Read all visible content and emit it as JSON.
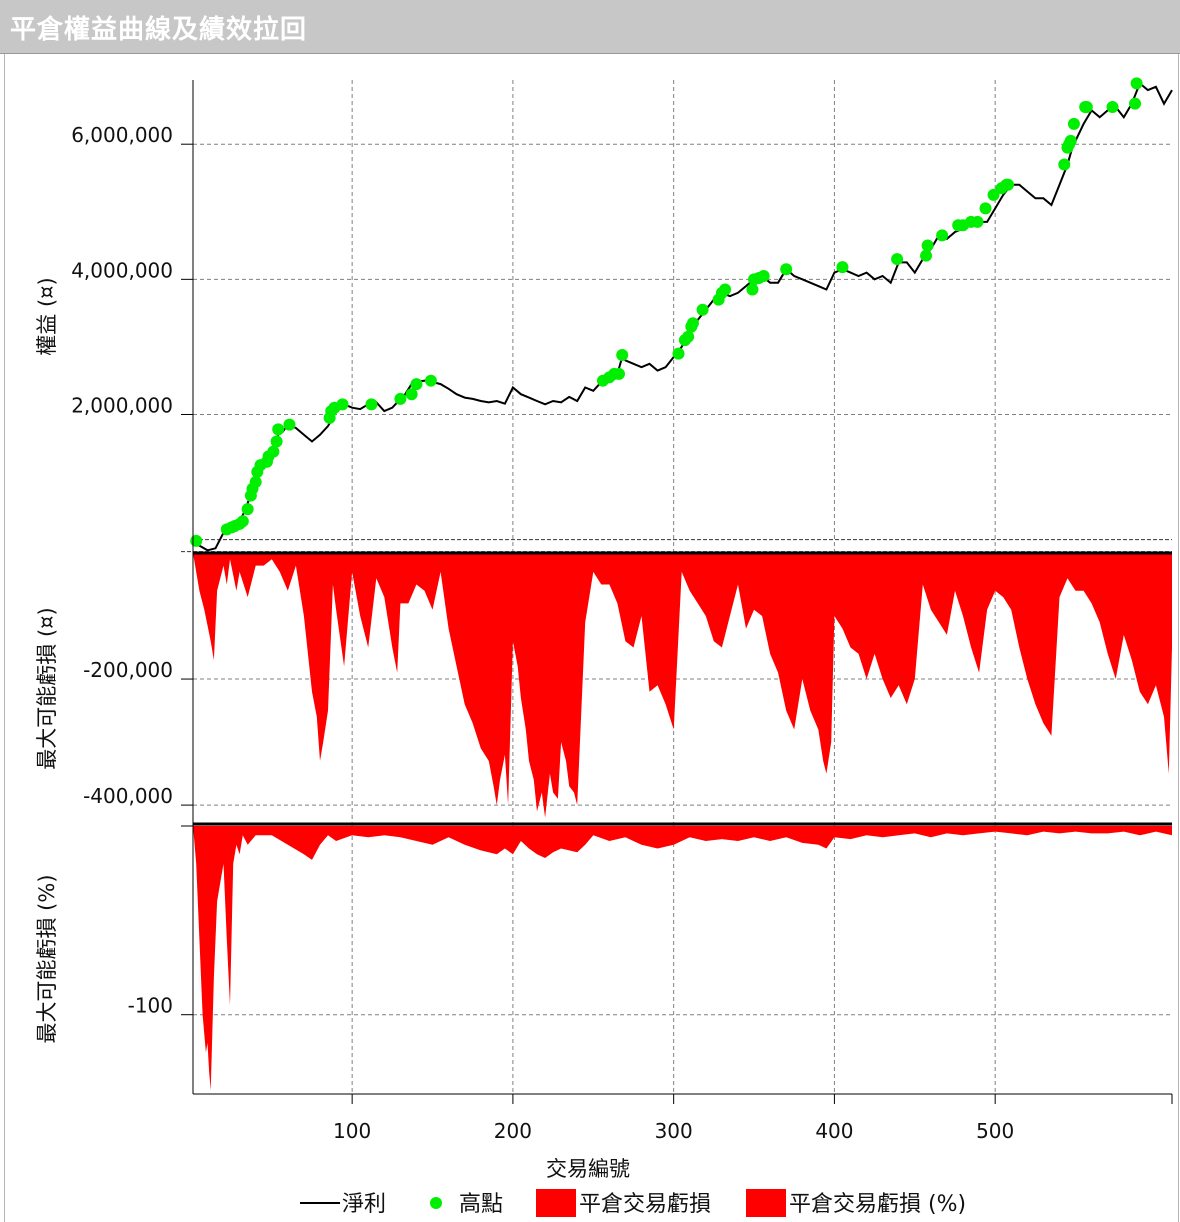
{
  "window": {
    "title": "平倉權益曲線及績效拉回"
  },
  "chart_data": [
    {
      "type": "line",
      "panel": "equity",
      "ylabel": "權益 (¤)",
      "xlabel": "交易編號",
      "xlim": [
        1,
        610
      ],
      "ylim": [
        -50000,
        6950000
      ],
      "yticks": [
        2000000,
        4000000,
        6000000
      ],
      "ytick_labels": [
        "2,000,000",
        "4,000,000",
        "6,000,000"
      ],
      "xticks": [
        100,
        200,
        300,
        400,
        500
      ],
      "grid": true,
      "series": [
        {
          "name": "淨利",
          "color": "#000000",
          "x": [
            1,
            5,
            10,
            15,
            20,
            22,
            25,
            30,
            33,
            36,
            38,
            40,
            42,
            44,
            46,
            48,
            50,
            53,
            55,
            57,
            60,
            65,
            70,
            75,
            80,
            85,
            88,
            90,
            93,
            95,
            100,
            105,
            110,
            115,
            120,
            125,
            130,
            133,
            137,
            140,
            145,
            150,
            155,
            160,
            165,
            170,
            175,
            180,
            185,
            190,
            195,
            200,
            205,
            210,
            215,
            220,
            225,
            230,
            235,
            240,
            245,
            250,
            255,
            260,
            265,
            268,
            270,
            275,
            280,
            285,
            290,
            295,
            300,
            305,
            310,
            315,
            320,
            325,
            330,
            335,
            340,
            345,
            350,
            355,
            360,
            365,
            370,
            375,
            380,
            385,
            390,
            395,
            400,
            405,
            410,
            415,
            420,
            425,
            430,
            435,
            440,
            445,
            450,
            455,
            460,
            465,
            470,
            475,
            480,
            485,
            490,
            495,
            500,
            505,
            510,
            515,
            520,
            525,
            530,
            535,
            540,
            545,
            548,
            550,
            555,
            560,
            565,
            570,
            575,
            580,
            585,
            590,
            595,
            600,
            605,
            610
          ],
          "values": [
            120000,
            60000,
            -10000,
            20000,
            250000,
            330000,
            350000,
            420000,
            560000,
            750000,
            900000,
            1000000,
            1150000,
            1200000,
            1300000,
            1380000,
            1450000,
            1620000,
            1780000,
            1750000,
            1850000,
            1800000,
            1700000,
            1600000,
            1700000,
            1830000,
            1950000,
            2050000,
            2120000,
            2150000,
            2100000,
            2080000,
            2150000,
            2180000,
            2050000,
            2100000,
            2230000,
            2300000,
            2450000,
            2480000,
            2500000,
            2480000,
            2450000,
            2380000,
            2300000,
            2250000,
            2230000,
            2200000,
            2180000,
            2200000,
            2160000,
            2400000,
            2300000,
            2250000,
            2200000,
            2150000,
            2200000,
            2180000,
            2260000,
            2200000,
            2400000,
            2350000,
            2480000,
            2550000,
            2600000,
            2850000,
            2800000,
            2750000,
            2700000,
            2750000,
            2650000,
            2700000,
            2850000,
            3000000,
            3250000,
            3400000,
            3550000,
            3700000,
            3800000,
            3750000,
            3800000,
            3900000,
            4000000,
            4050000,
            3950000,
            3950000,
            4150000,
            4050000,
            4000000,
            3950000,
            3900000,
            3850000,
            4100000,
            4150000,
            4100000,
            4050000,
            4100000,
            4000000,
            4050000,
            3950000,
            4250000,
            4250000,
            4100000,
            4300000,
            4450000,
            4650000,
            4600000,
            4700000,
            4750000,
            4800000,
            4850000,
            4850000,
            5050000,
            5250000,
            5400000,
            5400000,
            5300000,
            5200000,
            5200000,
            5100000,
            5400000,
            5700000,
            5950000,
            6050000,
            6300000,
            6500000,
            6400000,
            6500000,
            6550000,
            6400000,
            6600000,
            6900000,
            6800000,
            6850000,
            6600000,
            6800000
          ]
        },
        {
          "name": "高點",
          "color": "#00ee00",
          "x": [
            3,
            22,
            25,
            27,
            30,
            32,
            35,
            37,
            38,
            40,
            41,
            43,
            47,
            48,
            51,
            53,
            54,
            61,
            86,
            87,
            89,
            94,
            112,
            130,
            137,
            140,
            149,
            256,
            260,
            263,
            266,
            268,
            303,
            307,
            309,
            311,
            312,
            318,
            328,
            330,
            332,
            349,
            350,
            353,
            356,
            370,
            405,
            439,
            457,
            458,
            467,
            477,
            480,
            485,
            489,
            494,
            499,
            504,
            507,
            508,
            543,
            545,
            546,
            547,
            549,
            556,
            557,
            573,
            587,
            588
          ],
          "values": [
            130000,
            300000,
            330000,
            350000,
            380000,
            420000,
            600000,
            800000,
            900000,
            1000000,
            1150000,
            1250000,
            1300000,
            1380000,
            1450000,
            1600000,
            1780000,
            1850000,
            1950000,
            2050000,
            2100000,
            2150000,
            2150000,
            2230000,
            2300000,
            2450000,
            2500000,
            2500000,
            2550000,
            2600000,
            2600000,
            2880000,
            2900000,
            3100000,
            3150000,
            3300000,
            3350000,
            3550000,
            3700000,
            3800000,
            3850000,
            3850000,
            4000000,
            4020000,
            4050000,
            4150000,
            4180000,
            4300000,
            4350000,
            4500000,
            4650000,
            4800000,
            4800000,
            4850000,
            4850000,
            5050000,
            5250000,
            5350000,
            5400000,
            5400000,
            5700000,
            5950000,
            6000000,
            6050000,
            6300000,
            6550000,
            6550000,
            6550000,
            6600000,
            6900000
          ],
          "marker": "circle"
        }
      ]
    },
    {
      "type": "area",
      "panel": "drawdown",
      "ylabel": "最大可能虧損 (¤)",
      "ylim": [
        -430000,
        0
      ],
      "yticks": [
        -400000,
        -200000
      ],
      "ytick_labels": [
        "-400,000",
        "-200,000"
      ],
      "grid": true,
      "series": [
        {
          "name": "平倉交易虧損",
          "color": "#ff0000",
          "x": [
            1,
            5,
            8,
            12,
            14,
            16,
            20,
            22,
            24,
            28,
            30,
            35,
            40,
            45,
            50,
            55,
            60,
            65,
            70,
            75,
            78,
            80,
            82,
            85,
            88,
            90,
            95,
            100,
            105,
            110,
            115,
            120,
            125,
            128,
            130,
            135,
            140,
            145,
            150,
            155,
            160,
            165,
            170,
            175,
            180,
            185,
            188,
            190,
            192,
            195,
            197,
            200,
            203,
            205,
            208,
            210,
            213,
            215,
            218,
            220,
            223,
            225,
            228,
            230,
            233,
            235,
            238,
            240,
            245,
            250,
            255,
            260,
            265,
            270,
            275,
            280,
            285,
            290,
            295,
            300,
            305,
            310,
            315,
            320,
            325,
            330,
            335,
            340,
            345,
            350,
            355,
            360,
            365,
            370,
            375,
            380,
            385,
            390,
            393,
            395,
            398,
            400,
            405,
            410,
            415,
            420,
            425,
            430,
            435,
            440,
            445,
            450,
            455,
            460,
            465,
            470,
            475,
            480,
            485,
            490,
            495,
            500,
            505,
            510,
            515,
            520,
            525,
            530,
            535,
            540,
            545,
            550,
            555,
            560,
            565,
            570,
            575,
            580,
            585,
            590,
            595,
            600,
            605,
            608,
            610
          ],
          "values": [
            0,
            -60000,
            -90000,
            -140000,
            -170000,
            -60000,
            -20000,
            -50000,
            -10000,
            -60000,
            -30000,
            -70000,
            -20000,
            -20000,
            -10000,
            -30000,
            -60000,
            -20000,
            -100000,
            -220000,
            -260000,
            -330000,
            -300000,
            -250000,
            -50000,
            -90000,
            -180000,
            -30000,
            -100000,
            -150000,
            -40000,
            -70000,
            -150000,
            -190000,
            -80000,
            -80000,
            -50000,
            -60000,
            -90000,
            -30000,
            -120000,
            -180000,
            -240000,
            -270000,
            -310000,
            -330000,
            -370000,
            -400000,
            -360000,
            -320000,
            -400000,
            -140000,
            -180000,
            -230000,
            -280000,
            -330000,
            -360000,
            -410000,
            -380000,
            -420000,
            -350000,
            -380000,
            -390000,
            -300000,
            -330000,
            -370000,
            -380000,
            -400000,
            -110000,
            -30000,
            -50000,
            -50000,
            -80000,
            -140000,
            -150000,
            -100000,
            -220000,
            -210000,
            -240000,
            -280000,
            -30000,
            -60000,
            -80000,
            -100000,
            -140000,
            -150000,
            -100000,
            -50000,
            -120000,
            -90000,
            -100000,
            -160000,
            -190000,
            -250000,
            -280000,
            -200000,
            -250000,
            -280000,
            -330000,
            -350000,
            -300000,
            -100000,
            -120000,
            -150000,
            -160000,
            -200000,
            -160000,
            -200000,
            -230000,
            -210000,
            -240000,
            -200000,
            -50000,
            -90000,
            -110000,
            -130000,
            -60000,
            -100000,
            -150000,
            -190000,
            -90000,
            -60000,
            -70000,
            -90000,
            -150000,
            -200000,
            -240000,
            -270000,
            -290000,
            -70000,
            -40000,
            -60000,
            -60000,
            -80000,
            -110000,
            -160000,
            -200000,
            -130000,
            -170000,
            -220000,
            -240000,
            -210000,
            -260000,
            -350000,
            -150000
          ]
        }
      ]
    },
    {
      "type": "area",
      "panel": "drawdown_pct",
      "ylabel": "最大可能虧損 (%)",
      "ylim": [
        -142,
        1
      ],
      "yticks": [
        -100
      ],
      "ytick_labels": [
        "-100"
      ],
      "grid": true,
      "series": [
        {
          "name": "平倉交易虧損 (%)",
          "color": "#ff0000",
          "x": [
            1,
            3,
            5,
            7,
            9,
            10,
            11,
            12,
            13,
            14,
            15,
            16,
            18,
            20,
            22,
            24,
            26,
            28,
            30,
            32,
            35,
            40,
            50,
            60,
            70,
            75,
            80,
            85,
            90,
            100,
            110,
            120,
            130,
            140,
            150,
            160,
            170,
            180,
            190,
            195,
            200,
            205,
            210,
            215,
            220,
            225,
            230,
            235,
            240,
            245,
            250,
            260,
            270,
            280,
            290,
            300,
            310,
            320,
            330,
            340,
            350,
            360,
            370,
            380,
            390,
            395,
            400,
            410,
            420,
            430,
            440,
            450,
            460,
            470,
            480,
            490,
            500,
            510,
            520,
            530,
            540,
            550,
            560,
            570,
            580,
            590,
            600,
            610
          ],
          "values": [
            0,
            -20,
            -60,
            -100,
            -120,
            -115,
            -130,
            -140,
            -110,
            -80,
            -60,
            -40,
            -30,
            -20,
            -60,
            -95,
            -20,
            -10,
            -15,
            -5,
            -10,
            -5,
            -5,
            -10,
            -15,
            -18,
            -10,
            -5,
            -8,
            -5,
            -6,
            -5,
            -6,
            -8,
            -10,
            -6,
            -10,
            -13,
            -15,
            -12,
            -15,
            -8,
            -12,
            -15,
            -17,
            -14,
            -12,
            -13,
            -14,
            -10,
            -5,
            -8,
            -6,
            -10,
            -12,
            -10,
            -6,
            -8,
            -7,
            -8,
            -6,
            -8,
            -6,
            -9,
            -10,
            -12,
            -6,
            -7,
            -5,
            -6,
            -5,
            -4,
            -6,
            -4,
            -5,
            -4,
            -3,
            -4,
            -5,
            -3,
            -4,
            -3,
            -4,
            -4,
            -3,
            -5,
            -3,
            -5
          ]
        }
      ]
    }
  ],
  "legend": {
    "items": [
      {
        "label": "淨利",
        "kind": "line",
        "color": "#000000"
      },
      {
        "label": "高點",
        "kind": "dot",
        "color": "#00ee00"
      },
      {
        "label": "平倉交易虧損",
        "kind": "box",
        "color": "#ff0000"
      },
      {
        "label": "平倉交易虧損 (%)",
        "kind": "box",
        "color": "#ff0000"
      }
    ]
  }
}
